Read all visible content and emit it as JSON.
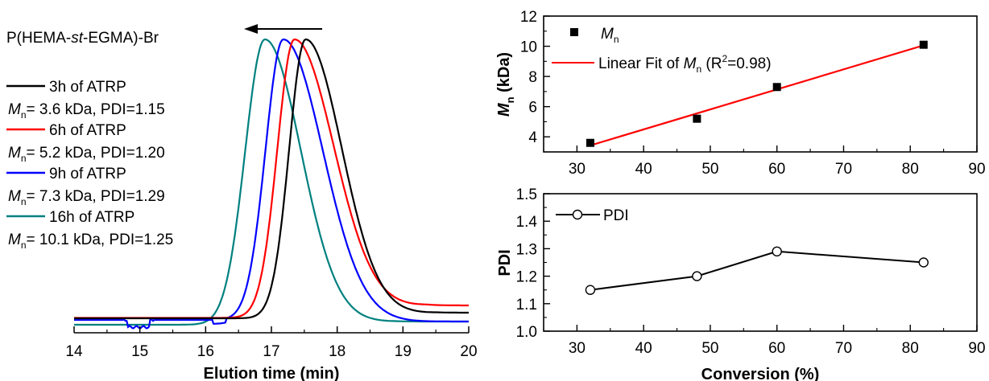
{
  "chart_data": [
    {
      "type": "line",
      "title": "P(HEMA-st-EGMA)-Br",
      "title_parts": {
        "pre": "P(HEMA-",
        "italic": "st",
        "post": "-EGMA)-Br"
      },
      "xlabel": "Elution time (min)",
      "ylabel": "",
      "xlim": [
        14,
        20
      ],
      "xticks": [
        "14",
        "15",
        "16",
        "17",
        "18",
        "19",
        "20"
      ],
      "x_direction_arrow": "toward lower elution time",
      "legend_position": "left",
      "series": [
        {
          "name": "3h of ATRP",
          "color": "#000000",
          "peak_time": 17.52,
          "mn_label": "M",
          "mn_sub": "n",
          "info": "= 3.6 kDa, PDI=1.15"
        },
        {
          "name": "6h of ATRP",
          "color": "#ff0000",
          "peak_time": 17.35,
          "mn_label": "M",
          "mn_sub": "n",
          "info": "= 5.2 kDa, PDI=1.20"
        },
        {
          "name": "9h of ATRP",
          "color": "#0000ff",
          "peak_time": 17.18,
          "mn_label": "M",
          "mn_sub": "n",
          "info": "= 7.3 kDa, PDI=1.29"
        },
        {
          "name": "16h of ATRP",
          "color": "#008080",
          "peak_time": 16.9,
          "mn_label": "M",
          "mn_sub": "n",
          "info": "= 10.1 kDa, PDI=1.25"
        }
      ]
    },
    {
      "type": "scatter",
      "xlabel": "",
      "ylabel_main": "M",
      "ylabel_sub": "n",
      "ylabel_unit": " (kDa)",
      "xlim": [
        25,
        90
      ],
      "ylim": [
        3,
        12
      ],
      "xticks": [
        "30",
        "40",
        "50",
        "60",
        "70",
        "80",
        "90"
      ],
      "yticks": [
        "4",
        "6",
        "8",
        "10",
        "12"
      ],
      "legend_position": "top-left",
      "points": [
        {
          "x": 32,
          "y": 3.6
        },
        {
          "x": 48,
          "y": 5.2
        },
        {
          "x": 60,
          "y": 7.3
        },
        {
          "x": 82,
          "y": 10.1
        }
      ],
      "scatter_legend": {
        "main": "M",
        "sub": "n"
      },
      "fit": {
        "x": [
          32,
          82
        ],
        "y": [
          3.43,
          10.06
        ],
        "color": "#ff0000",
        "legend_pre": "Linear Fit of ",
        "legend_main": "M",
        "legend_sub": "n",
        "legend_post1": " (R",
        "legend_sup": "2",
        "legend_post2": "=0.98)"
      }
    },
    {
      "type": "line",
      "xlabel": "Conversion (%)",
      "ylabel": "PDI",
      "xlim": [
        25,
        90
      ],
      "ylim": [
        1.0,
        1.5
      ],
      "xticks": [
        "30",
        "40",
        "50",
        "60",
        "70",
        "80",
        "90"
      ],
      "yticks": [
        "1.0",
        "1.1",
        "1.2",
        "1.3",
        "1.4",
        "1.5"
      ],
      "legend_position": "top-left",
      "series": [
        {
          "name": "PDI",
          "x": [
            32,
            48,
            60,
            82
          ],
          "y": [
            1.15,
            1.2,
            1.29,
            1.25
          ]
        }
      ]
    }
  ]
}
